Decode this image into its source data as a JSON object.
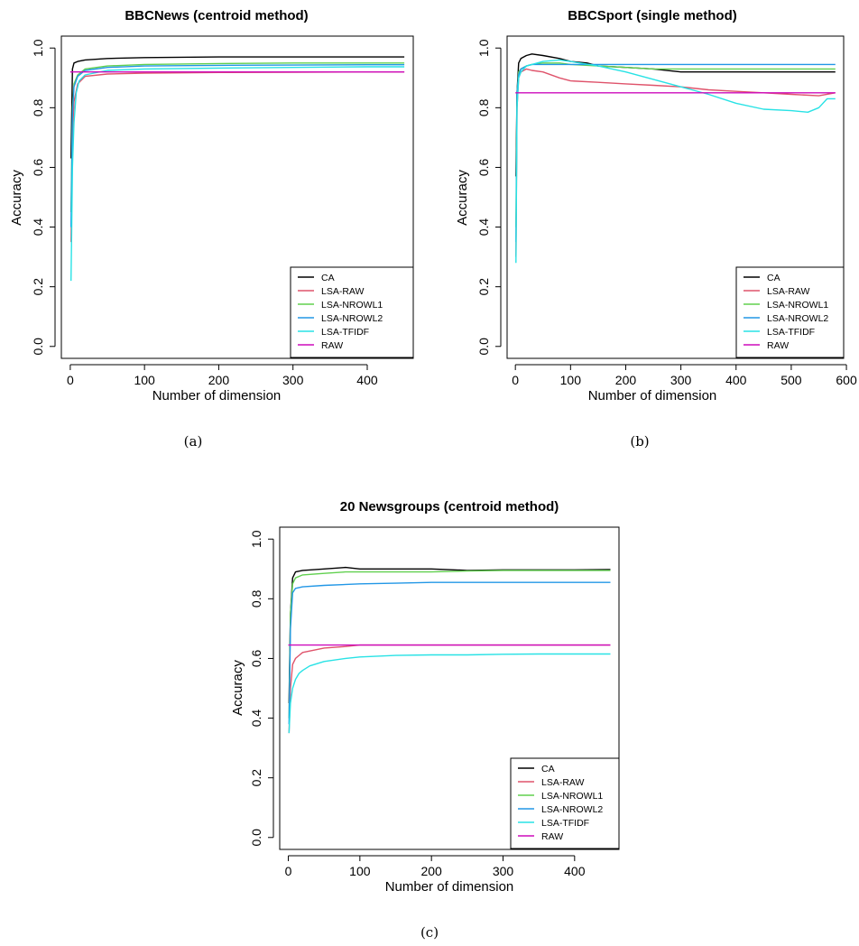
{
  "panels": [
    {
      "title": "BBCNews (centroid method)",
      "caption": "(a)",
      "xlabel": "Number of dimension",
      "ylabel": "Accuracy",
      "x_ticks": [
        "0",
        "100",
        "200",
        "300",
        "400"
      ],
      "y_ticks": [
        "0.0",
        "0.2",
        "0.4",
        "0.6",
        "0.8",
        "1.0"
      ]
    },
    {
      "title": "BBCSport (single method)",
      "caption": "(b)",
      "xlabel": "Number of dimension",
      "ylabel": "Accuracy",
      "x_ticks": [
        "0",
        "100",
        "200",
        "300",
        "400",
        "500",
        "600"
      ],
      "y_ticks": [
        "0.0",
        "0.2",
        "0.4",
        "0.6",
        "0.8",
        "1.0"
      ]
    },
    {
      "title": "20 Newsgroups (centroid method)",
      "caption": "(c)",
      "xlabel": "Number of dimension",
      "ylabel": "Accuracy",
      "x_ticks": [
        "0",
        "100",
        "200",
        "300",
        "400"
      ],
      "y_ticks": [
        "0.0",
        "0.2",
        "0.4",
        "0.6",
        "0.8",
        "1.0"
      ]
    }
  ],
  "chart_data": [
    {
      "type": "line",
      "title": "BBCNews (centroid method)",
      "xlabel": "Number of dimension",
      "ylabel": "Accuracy",
      "xlim": [
        -12,
        462
      ],
      "ylim": [
        -0.04,
        1.04
      ],
      "legend_position": "bottom-right",
      "series": [
        {
          "name": "CA",
          "color": "#000000",
          "x": [
            1,
            3,
            5,
            10,
            20,
            50,
            100,
            200,
            300,
            400,
            450
          ],
          "y": [
            0.63,
            0.93,
            0.95,
            0.955,
            0.96,
            0.965,
            0.968,
            0.97,
            0.97,
            0.97,
            0.97
          ]
        },
        {
          "name": "LSA-RAW",
          "color": "#DF536B",
          "x": [
            1,
            3,
            5,
            10,
            20,
            50,
            100,
            200,
            300,
            400,
            450
          ],
          "y": [
            0.35,
            0.7,
            0.82,
            0.88,
            0.905,
            0.913,
            0.916,
            0.918,
            0.919,
            0.92,
            0.92
          ]
        },
        {
          "name": "LSA-NROWL1",
          "color": "#61D04F",
          "x": [
            1,
            3,
            5,
            10,
            20,
            50,
            100,
            200,
            300,
            400,
            450
          ],
          "y": [
            0.45,
            0.8,
            0.88,
            0.91,
            0.93,
            0.94,
            0.945,
            0.948,
            0.95,
            0.95,
            0.95
          ]
        },
        {
          "name": "LSA-NROWL2",
          "color": "#2297E6",
          "x": [
            1,
            3,
            5,
            10,
            20,
            50,
            100,
            200,
            300,
            400,
            450
          ],
          "y": [
            0.4,
            0.78,
            0.87,
            0.905,
            0.925,
            0.935,
            0.94,
            0.942,
            0.943,
            0.944,
            0.944
          ]
        },
        {
          "name": "LSA-TFIDF",
          "color": "#28E2E5",
          "x": [
            1,
            2,
            3,
            5,
            8,
            12,
            20,
            50,
            100,
            200,
            300,
            400,
            450
          ],
          "y": [
            0.22,
            0.4,
            0.6,
            0.75,
            0.85,
            0.89,
            0.91,
            0.925,
            0.93,
            0.933,
            0.935,
            0.937,
            0.937
          ]
        },
        {
          "name": "RAW",
          "color": "#CD0BBC",
          "x": [
            0,
            450
          ],
          "y": [
            0.92,
            0.92
          ]
        }
      ]
    },
    {
      "type": "line",
      "title": "BBCSport (single method)",
      "xlabel": "Number of dimension",
      "ylabel": "Accuracy",
      "xlim": [
        -15,
        595
      ],
      "ylim": [
        -0.04,
        1.04
      ],
      "legend_position": "bottom-right",
      "series": [
        {
          "name": "CA",
          "color": "#000000",
          "x": [
            1,
            3,
            6,
            10,
            20,
            30,
            50,
            80,
            100,
            130,
            150,
            200,
            250,
            300,
            350,
            400,
            450,
            500,
            550,
            580
          ],
          "y": [
            0.57,
            0.85,
            0.95,
            0.965,
            0.975,
            0.98,
            0.975,
            0.965,
            0.955,
            0.95,
            0.94,
            0.935,
            0.93,
            0.92,
            0.92,
            0.92,
            0.92,
            0.92,
            0.92,
            0.92
          ]
        },
        {
          "name": "LSA-RAW",
          "color": "#DF536B",
          "x": [
            1,
            3,
            6,
            10,
            20,
            30,
            50,
            80,
            100,
            150,
            200,
            250,
            300,
            350,
            400,
            450,
            500,
            550,
            580
          ],
          "y": [
            0.3,
            0.8,
            0.9,
            0.92,
            0.93,
            0.925,
            0.92,
            0.9,
            0.89,
            0.885,
            0.88,
            0.875,
            0.87,
            0.86,
            0.855,
            0.85,
            0.845,
            0.84,
            0.85
          ]
        },
        {
          "name": "LSA-NROWL1",
          "color": "#61D04F",
          "x": [
            1,
            3,
            6,
            10,
            20,
            30,
            50,
            80,
            100,
            150,
            200,
            250,
            300,
            350,
            400,
            450,
            500,
            550,
            580
          ],
          "y": [
            0.4,
            0.85,
            0.92,
            0.93,
            0.94,
            0.945,
            0.95,
            0.95,
            0.945,
            0.94,
            0.935,
            0.93,
            0.93,
            0.93,
            0.93,
            0.93,
            0.93,
            0.93,
            0.93
          ]
        },
        {
          "name": "LSA-NROWL2",
          "color": "#2297E6",
          "x": [
            1,
            3,
            6,
            10,
            20,
            30,
            50,
            80,
            100,
            150,
            200,
            250,
            300,
            350,
            400,
            450,
            500,
            550,
            580
          ],
          "y": [
            0.35,
            0.85,
            0.91,
            0.93,
            0.94,
            0.945,
            0.945,
            0.945,
            0.945,
            0.945,
            0.945,
            0.945,
            0.945,
            0.945,
            0.945,
            0.945,
            0.945,
            0.945,
            0.945
          ]
        },
        {
          "name": "LSA-TFIDF",
          "color": "#28E2E5",
          "x": [
            1,
            3,
            6,
            10,
            20,
            30,
            50,
            80,
            100,
            150,
            200,
            250,
            300,
            350,
            400,
            450,
            500,
            530,
            550,
            565,
            580
          ],
          "y": [
            0.28,
            0.8,
            0.9,
            0.92,
            0.94,
            0.945,
            0.955,
            0.96,
            0.955,
            0.94,
            0.92,
            0.895,
            0.87,
            0.845,
            0.815,
            0.795,
            0.79,
            0.785,
            0.8,
            0.83,
            0.83
          ]
        },
        {
          "name": "RAW",
          "color": "#CD0BBC",
          "x": [
            0,
            580
          ],
          "y": [
            0.85,
            0.85
          ]
        }
      ]
    },
    {
      "type": "line",
      "title": "20 Newsgroups (centroid method)",
      "xlabel": "Number of dimension",
      "ylabel": "Accuracy",
      "xlim": [
        -12,
        462
      ],
      "ylim": [
        -0.04,
        1.04
      ],
      "legend_position": "bottom-right",
      "series": [
        {
          "name": "CA",
          "color": "#000000",
          "x": [
            1,
            3,
            6,
            10,
            20,
            50,
            80,
            100,
            150,
            200,
            250,
            300,
            350,
            400,
            450
          ],
          "y": [
            0.45,
            0.75,
            0.87,
            0.89,
            0.895,
            0.9,
            0.905,
            0.9,
            0.9,
            0.9,
            0.895,
            0.897,
            0.897,
            0.897,
            0.898
          ]
        },
        {
          "name": "LSA-RAW",
          "color": "#DF536B",
          "x": [
            1,
            3,
            6,
            10,
            15,
            20,
            30,
            50,
            80,
            100,
            150,
            200,
            300,
            400,
            450
          ],
          "y": [
            0.35,
            0.5,
            0.58,
            0.6,
            0.61,
            0.62,
            0.625,
            0.635,
            0.64,
            0.645,
            0.645,
            0.645,
            0.645,
            0.645,
            0.645
          ]
        },
        {
          "name": "LSA-NROWL1",
          "color": "#61D04F",
          "x": [
            1,
            3,
            6,
            10,
            20,
            50,
            80,
            100,
            150,
            200,
            250,
            300,
            350,
            400,
            450
          ],
          "y": [
            0.4,
            0.75,
            0.85,
            0.87,
            0.88,
            0.885,
            0.89,
            0.89,
            0.89,
            0.89,
            0.893,
            0.895,
            0.895,
            0.895,
            0.895
          ]
        },
        {
          "name": "LSA-NROWL2",
          "color": "#2297E6",
          "x": [
            1,
            3,
            6,
            10,
            20,
            50,
            100,
            150,
            200,
            250,
            300,
            350,
            400,
            450
          ],
          "y": [
            0.38,
            0.7,
            0.82,
            0.835,
            0.84,
            0.845,
            0.85,
            0.852,
            0.855,
            0.855,
            0.855,
            0.855,
            0.855,
            0.855
          ]
        },
        {
          "name": "LSA-TFIDF",
          "color": "#28E2E5",
          "x": [
            1,
            3,
            6,
            10,
            15,
            20,
            30,
            50,
            80,
            100,
            150,
            200,
            250,
            300,
            350,
            400,
            450
          ],
          "y": [
            0.35,
            0.45,
            0.5,
            0.53,
            0.55,
            0.56,
            0.575,
            0.59,
            0.6,
            0.605,
            0.61,
            0.612,
            0.612,
            0.614,
            0.615,
            0.615,
            0.615
          ]
        },
        {
          "name": "RAW",
          "color": "#CD0BBC",
          "x": [
            0,
            450
          ],
          "y": [
            0.645,
            0.645
          ]
        }
      ]
    }
  ]
}
